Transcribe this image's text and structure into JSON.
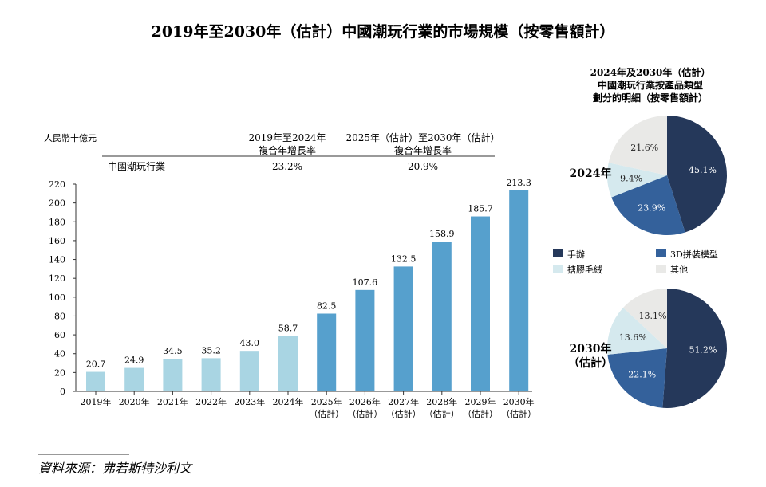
{
  "title": "2019年至2030年（估計）中國潮玩行業的市場規模（按零售額計）",
  "source": "資料來源：弗若斯特沙利文",
  "chart_data": [
    {
      "type": "bar",
      "unit_label": "人民幣十億元",
      "categories": [
        "2019年",
        "2020年",
        "2021年",
        "2022年",
        "2023年",
        "2024年",
        "2025年\n(估計)",
        "2026年\n(估計)",
        "2027年\n(估計)",
        "2028年\n(估計)",
        "2029年\n(估計)",
        "2030年\n(估計)"
      ],
      "values": [
        20.7,
        24.9,
        34.5,
        35.2,
        43.0,
        58.7,
        82.5,
        107.6,
        132.5,
        158.9,
        185.7,
        213.3
      ],
      "value_labels": [
        "20.7",
        "24.9",
        "34.5",
        "35.2",
        "43.0",
        "58.7",
        "82.5",
        "107.6",
        "132.5",
        "158.9",
        "185.7",
        "213.3"
      ],
      "forecast_from_index": 6,
      "colors": {
        "historical": "#a9d5e3",
        "forecast": "#56a0cd"
      },
      "ylim": [
        0,
        220
      ],
      "yticks": [
        0,
        20,
        40,
        60,
        80,
        100,
        120,
        140,
        160,
        180,
        200,
        220
      ],
      "grid": false,
      "cagr_table": {
        "headers": [
          "2019年至2024年\n複合年增長率",
          "2025年（估計）至2030年（估計）\n複合年增長率"
        ],
        "row_label": "中國潮玩行業",
        "values": [
          "23.2%",
          "20.9%"
        ]
      }
    },
    {
      "type": "pie",
      "title": "2024年及2030年（估計）\n中國潮玩行業按產品類型\n劃分的明細（按零售額計）",
      "legend": [
        "手辦",
        "3D拼裝模型",
        "搪膠毛絨",
        "其他"
      ],
      "legend_placement": "between pies",
      "colors": [
        "#25385a",
        "#34619b",
        "#d5e9ee",
        "#e9e9e7"
      ],
      "pies": [
        {
          "label": "2024年",
          "values": [
            45.1,
            23.9,
            9.4,
            21.6
          ],
          "value_labels": [
            "45.1%",
            "23.9%",
            "9.4%",
            "21.6%"
          ]
        },
        {
          "label": "2030年\n(估計)",
          "values": [
            51.2,
            22.1,
            13.6,
            13.1
          ],
          "value_labels": [
            "51.2%",
            "22.1%",
            "13.6%",
            "13.1%"
          ]
        }
      ]
    }
  ]
}
